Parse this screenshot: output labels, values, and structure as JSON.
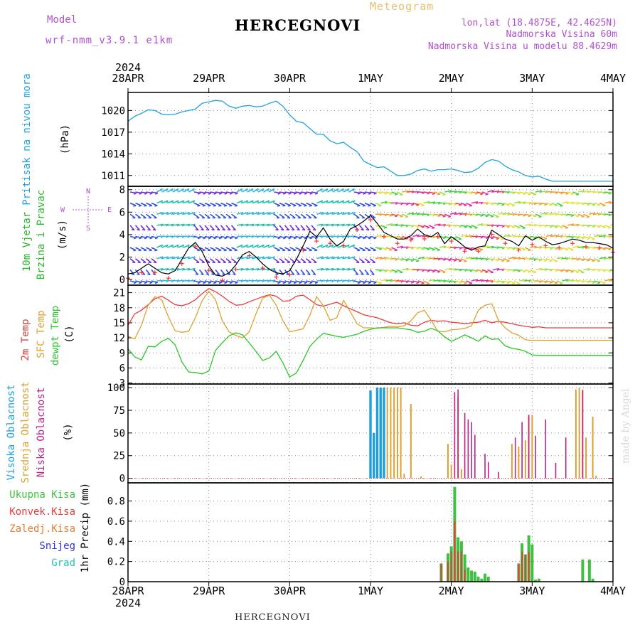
{
  "header": {
    "model_label": "Model",
    "model_name": "wrf-nmm_v3.9.1 e1km",
    "title": "HERCEGNOVI",
    "meteogram": "Meteogram",
    "lonlat": "lon,lat (18.4875E, 42.4625N)",
    "altitude": "Nadmorska Visina 60m",
    "model_altitude": "Nadmorska Visina u modelu 88.4629m",
    "footer_title": "HERCEGNOVI",
    "watermark": "made by Angel"
  },
  "colors": {
    "pressure": "#1fa3e0",
    "temp2m": "#e83c3c",
    "sfc": "#e0a030",
    "dew": "#28c828",
    "high_cloud": "#1a9fe0",
    "mid_cloud": "#e0a030",
    "low_cloud": "#c0208a",
    "total_precip": "#40c040",
    "conv_precip": "#e83c3c",
    "frozen": "#e08030",
    "snow": "#3030e0",
    "grad": "#20c0c0",
    "model_label": "#b050d0"
  },
  "chart_data": [
    {
      "type": "line",
      "panel": "pressure",
      "ylabel": [
        "Pritisak na nivou mora",
        "(hPa)"
      ],
      "xlim": [
        0,
        144
      ],
      "ylim": [
        1009.5,
        1022.5
      ],
      "yticks": [
        1011,
        1014,
        1017,
        1020
      ],
      "grid": true,
      "x_date_labels": [
        "28APR",
        "29APR",
        "30APR",
        "1MAY",
        "2MAY",
        "3MAY",
        "4MAY"
      ],
      "year_label": "2024",
      "series": [
        {
          "x": [
            0,
            2,
            4,
            6,
            8,
            10,
            12,
            14,
            16,
            18,
            20,
            22,
            24,
            26,
            28,
            30,
            32,
            34,
            36,
            38,
            40,
            42,
            44,
            46,
            48,
            50,
            52,
            54,
            56,
            58,
            60,
            62,
            64,
            66,
            68,
            70,
            72,
            74,
            76,
            78,
            80,
            82,
            84,
            86,
            88,
            90,
            92,
            94,
            96,
            98,
            100,
            102,
            104,
            106,
            108,
            110,
            112,
            114,
            116,
            118,
            120,
            122,
            124,
            126,
            128,
            130,
            132,
            134,
            136,
            138,
            140,
            142,
            144
          ],
          "values": [
            1018.5,
            1019.2,
            1019.6,
            1020.1,
            1020.0,
            1019.5,
            1019.4,
            1019.5,
            1019.8,
            1020.0,
            1020.2,
            1021.0,
            1021.2,
            1021.4,
            1021.3,
            1020.6,
            1020.3,
            1020.6,
            1020.7,
            1020.5,
            1020.6,
            1021.0,
            1021.3,
            1020.6,
            1019.4,
            1018.5,
            1018.3,
            1017.5,
            1016.7,
            1016.7,
            1015.8,
            1015.4,
            1015.6,
            1014.9,
            1014.3,
            1013.0,
            1012.5,
            1012.1,
            1012.2,
            1011.6,
            1011.0,
            1011.0,
            1011.2,
            1011.7,
            1011.9,
            1011.6,
            1011.8,
            1011.8,
            1011.9,
            1011.7,
            1011.4,
            1011.5,
            1012.0,
            1012.8,
            1013.2,
            1013.0,
            1012.3,
            1011.8,
            1011.5,
            1011.0,
            1010.8,
            1010.9,
            1010.5,
            1010.2,
            1010.2,
            1010.2,
            1010.2,
            1010.2,
            1010.2,
            1010.2,
            1010.2,
            1010.2,
            1010.2
          ]
        }
      ]
    },
    {
      "type": "line",
      "panel": "wind",
      "ylabel": [
        "10m Vjetar",
        "Brzina i Pravac",
        "(m/s)"
      ],
      "compass": [
        "N",
        "W",
        "E",
        "S"
      ],
      "xlim": [
        0,
        144
      ],
      "ylim": [
        -0.5,
        8.3
      ],
      "yticks": [
        0,
        2,
        4,
        6,
        8
      ],
      "grid": true,
      "series": [
        {
          "name": "speed",
          "x": [
            0,
            2,
            4,
            6,
            8,
            10,
            12,
            14,
            16,
            18,
            20,
            22,
            24,
            26,
            28,
            30,
            32,
            34,
            36,
            38,
            40,
            42,
            44,
            46,
            48,
            50,
            52,
            54,
            56,
            58,
            60,
            62,
            64,
            66,
            68,
            70,
            72,
            74,
            76,
            78,
            80,
            82,
            84,
            86,
            88,
            90,
            92,
            94,
            96,
            98,
            100,
            102,
            104,
            106,
            108,
            110,
            112,
            114,
            116,
            118,
            120,
            122,
            124,
            126,
            128,
            130,
            132,
            134,
            136,
            138,
            140,
            142,
            144
          ],
          "values": [
            0.5,
            0.6,
            1.0,
            1.4,
            1.0,
            0.6,
            0.5,
            0.8,
            1.8,
            2.8,
            3.3,
            2.5,
            1.2,
            0.4,
            0.3,
            0.6,
            1.3,
            2.2,
            2.5,
            2.0,
            1.4,
            0.9,
            0.6,
            0.5,
            0.8,
            1.8,
            3.0,
            4.3,
            3.8,
            4.6,
            3.6,
            3.0,
            3.4,
            4.5,
            4.8,
            5.2,
            5.7,
            5.0,
            4.2,
            3.9,
            3.6,
            3.6,
            3.9,
            4.5,
            4.0,
            3.8,
            4.2,
            3.2,
            3.8,
            3.4,
            2.9,
            2.6,
            2.9,
            3.0,
            4.4,
            4.0,
            3.6,
            3.4,
            3.0,
            3.9,
            3.5,
            3.8,
            3.4,
            3.1,
            3.2,
            3.4,
            3.6,
            3.5,
            3.3,
            3.3,
            3.2,
            3.1,
            2.8
          ]
        }
      ]
    },
    {
      "type": "line",
      "panel": "temperature",
      "ylabel": [
        "2m Temp",
        "SFC Temp",
        "dewpt Temp",
        "(C)"
      ],
      "xlim": [
        0,
        144
      ],
      "ylim": [
        2.8,
        22.5
      ],
      "yticks": [
        3,
        6,
        9,
        12,
        15,
        18,
        21
      ],
      "grid": true,
      "series": [
        {
          "name": "2m Temp",
          "x": [
            0,
            2,
            4,
            6,
            8,
            10,
            12,
            14,
            16,
            18,
            20,
            22,
            24,
            26,
            28,
            30,
            32,
            34,
            36,
            38,
            40,
            42,
            44,
            46,
            48,
            50,
            52,
            54,
            56,
            58,
            60,
            62,
            64,
            66,
            68,
            70,
            72,
            74,
            76,
            78,
            80,
            82,
            84,
            86,
            88,
            90,
            92,
            94,
            96,
            98,
            100,
            102,
            104,
            106,
            108,
            110,
            112,
            114,
            116,
            118,
            120,
            122,
            124,
            126,
            128,
            130,
            132,
            134,
            136,
            138,
            140,
            142,
            144
          ],
          "values": [
            14.5,
            16.8,
            17.5,
            18.6,
            19.8,
            20.3,
            19.5,
            18.6,
            18.4,
            18.8,
            19.6,
            20.8,
            21.8,
            21.2,
            20.3,
            19.3,
            18.5,
            18.6,
            19.2,
            19.7,
            20.2,
            20.6,
            20.3,
            19.3,
            19.4,
            20.3,
            20.5,
            19.6,
            18.6,
            18.3,
            18.7,
            19.1,
            18.4,
            17.8,
            17.2,
            16.6,
            16.3,
            16.0,
            15.5,
            15.0,
            14.8,
            15.0,
            14.5,
            14.4,
            15.1,
            15.5,
            15.3,
            15.4,
            15.1,
            15.0,
            14.8,
            15.0,
            15.1,
            15.5,
            15.0,
            15.3,
            15.1,
            14.8,
            14.5,
            14.3,
            14.1,
            14.2,
            14.0,
            14.0,
            14.0,
            14.0,
            14.0,
            14.0,
            14.0,
            14.0,
            14.0,
            14.0,
            14.0
          ]
        },
        {
          "name": "SFC Temp",
          "x": [
            0,
            2,
            4,
            6,
            8,
            10,
            12,
            14,
            16,
            18,
            20,
            22,
            24,
            26,
            28,
            30,
            32,
            34,
            36,
            38,
            40,
            42,
            44,
            46,
            48,
            50,
            52,
            54,
            56,
            58,
            60,
            62,
            64,
            66,
            68,
            70,
            72,
            74,
            76,
            78,
            80,
            82,
            84,
            86,
            88,
            90,
            92,
            94,
            96,
            98,
            100,
            102,
            104,
            106,
            108,
            110,
            112,
            114,
            116,
            118,
            120,
            122,
            124,
            126,
            128,
            130,
            132,
            134,
            136,
            138,
            140,
            142,
            144
          ],
          "values": [
            12.3,
            11.8,
            14.5,
            18.5,
            20.2,
            19.6,
            16.2,
            13.4,
            13.1,
            13.3,
            16.0,
            19.4,
            21.3,
            19.6,
            15.4,
            13.2,
            12.5,
            12.0,
            13.2,
            16.8,
            19.9,
            20.5,
            18.5,
            15.4,
            13.2,
            13.5,
            13.8,
            16.5,
            20.2,
            18.4,
            15.5,
            16.0,
            19.5,
            17.2,
            14.8,
            14.0,
            14.0,
            13.9,
            14.1,
            14.3,
            14.2,
            14.4,
            15.4,
            17.0,
            17.5,
            15.5,
            13.3,
            13.2,
            13.6,
            13.7,
            13.9,
            14.4,
            17.5,
            18.5,
            18.8,
            15.5,
            14.0,
            13.0,
            12.5,
            11.6,
            11.5,
            11.5,
            11.5,
            11.5,
            11.5,
            11.5,
            11.5,
            11.5,
            11.5,
            11.5,
            11.5,
            11.5,
            11.5
          ]
        },
        {
          "name": "dewpt Temp",
          "x": [
            0,
            2,
            4,
            6,
            8,
            10,
            12,
            14,
            16,
            18,
            20,
            22,
            24,
            26,
            28,
            30,
            32,
            34,
            36,
            38,
            40,
            42,
            44,
            46,
            48,
            50,
            52,
            54,
            56,
            58,
            60,
            62,
            64,
            66,
            68,
            70,
            72,
            74,
            76,
            78,
            80,
            82,
            84,
            86,
            88,
            90,
            92,
            94,
            96,
            98,
            100,
            102,
            104,
            106,
            108,
            110,
            112,
            114,
            116,
            118,
            120,
            122,
            124,
            126,
            128,
            130,
            132,
            134,
            136,
            138,
            140,
            142,
            144
          ],
          "values": [
            9.8,
            8.2,
            7.6,
            10.3,
            10.2,
            11.3,
            11.9,
            10.6,
            7.2,
            5.2,
            5.1,
            4.8,
            5.4,
            9.5,
            11.0,
            12.4,
            13.0,
            12.6,
            11.0,
            9.3,
            7.5,
            8.0,
            9.3,
            7.0,
            4.2,
            5.0,
            7.5,
            10.3,
            11.7,
            12.9,
            12.6,
            12.3,
            12.1,
            12.4,
            12.7,
            13.3,
            13.7,
            14.0,
            14.0,
            14.0,
            14.0,
            13.8,
            13.6,
            13.1,
            13.3,
            13.9,
            13.4,
            12.2,
            11.3,
            11.9,
            12.6,
            12.0,
            11.3,
            12.4,
            11.7,
            11.8,
            10.4,
            9.9,
            9.7,
            9.3,
            8.6,
            8.5,
            8.5,
            8.5,
            8.5,
            8.5,
            8.5,
            8.5,
            8.5,
            8.5,
            8.5,
            8.5,
            8.5
          ]
        }
      ]
    },
    {
      "type": "bar",
      "panel": "cloud",
      "ylabel": [
        "Visoka Oblacnost",
        "Srednja Oblacnost",
        "Niska Oblacnost",
        "(%)"
      ],
      "xlim": [
        0,
        144
      ],
      "ylim": [
        -5,
        104
      ],
      "yticks": [
        0,
        25,
        50,
        75,
        100
      ],
      "grid": true,
      "series": [
        {
          "name": "Visoka Oblacnost",
          "x": [
            72,
            73,
            74,
            75,
            76
          ],
          "values": [
            97,
            50,
            100,
            100,
            100
          ]
        },
        {
          "name": "Srednja Oblacnost",
          "x": [
            77,
            78,
            79,
            80,
            81,
            82,
            84,
            87,
            95,
            96,
            98,
            99,
            114,
            116,
            118,
            119,
            120,
            133,
            134,
            135,
            136,
            138,
            139
          ],
          "values": [
            100,
            100,
            100,
            100,
            100,
            5,
            82,
            2,
            38,
            15,
            90,
            10,
            38,
            35,
            42,
            68,
            70,
            98,
            100,
            98,
            45,
            68,
            3
          ]
        },
        {
          "name": "Niska Oblacnost",
          "x": [
            97,
            98,
            100,
            101,
            102,
            103,
            106,
            107,
            110,
            115,
            117,
            119,
            121,
            124,
            127,
            130,
            135
          ],
          "values": [
            95,
            98,
            72,
            65,
            62,
            48,
            27,
            18,
            7,
            45,
            62,
            70,
            47,
            65,
            17,
            45,
            97
          ]
        }
      ]
    },
    {
      "type": "bar",
      "panel": "precip",
      "ylabel": [
        "1hr Precip (mm)"
      ],
      "legend": [
        "Ukupna Kisa",
        "Konvek.Kisa",
        "Zaledj.Kisa",
        "Snijeg",
        "Grad"
      ],
      "xlim": [
        0,
        144
      ],
      "ylim": [
        0,
        0.98
      ],
      "yticks": [
        0,
        0.2,
        0.4,
        0.6,
        0.8
      ],
      "grid": true,
      "series": [
        {
          "name": "Ukupna Kisa",
          "x": [
            93,
            94,
            95,
            96,
            97,
            98,
            99,
            100,
            101,
            102,
            103,
            104,
            105,
            106,
            107,
            108,
            116,
            117,
            118,
            119,
            120,
            121,
            122,
            123,
            134,
            135,
            137,
            138
          ],
          "values": [
            0.18,
            0.0,
            0.28,
            0.35,
            0.94,
            0.44,
            0.4,
            0.27,
            0.14,
            0.11,
            0.1,
            0.05,
            0.03,
            0.08,
            0.05,
            0.0,
            0.18,
            0.38,
            0.27,
            0.46,
            0.37,
            0.02,
            0.03,
            0.0,
            0.0,
            0.22,
            0.22,
            0.03
          ]
        },
        {
          "name": "Konvek.Kisa",
          "x": [
            93,
            95,
            96,
            97,
            98,
            99,
            100,
            116,
            117,
            118,
            119
          ],
          "values": [
            0.18,
            0.2,
            0.3,
            0.6,
            0.3,
            0.3,
            0.12,
            0.18,
            0.3,
            0.27,
            0.3
          ]
        }
      ]
    }
  ]
}
